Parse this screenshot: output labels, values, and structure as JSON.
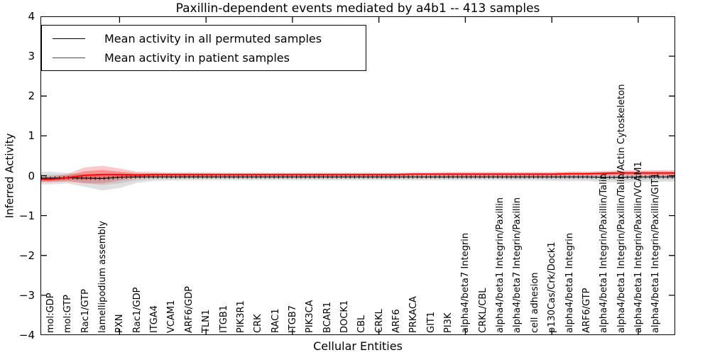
{
  "figure": {
    "title": "Paxillin-dependent events mediated by a4b1 -- 413 samples",
    "xlabel": "Cellular Entities",
    "ylabel": "Inferred Activity"
  },
  "legend": {
    "items": [
      {
        "label": "Mean activity in all permuted samples",
        "color": "#000000"
      },
      {
        "label": "Mean activity in patient samples",
        "color": "#ff0000"
      }
    ]
  },
  "chart_data": {
    "type": "line",
    "title": "Paxillin-dependent events mediated by a4b1 -- 413 samples",
    "xlabel": "Cellular Entities",
    "ylabel": "Inferred Activity",
    "ylim": [
      -4,
      4
    ],
    "yticks": [
      4,
      3,
      2,
      1,
      0,
      -1,
      -2,
      -3,
      -4
    ],
    "xtick_positions": [
      5,
      10,
      15,
      20,
      25,
      30,
      35
    ],
    "grid": false,
    "legend_position": "upper left",
    "categories": [
      "mol:GDP",
      "mol:GTP",
      "Rac1/GTP",
      "lamellipodium assembly",
      "PXN",
      "Rac1/GDP",
      "ITGA4",
      "VCAM1",
      "ARF6/GDP",
      "TLN1",
      "ITGB1",
      "PIK3R1",
      "CRK",
      "RAC1",
      "ITGB7",
      "PIK3CA",
      "BCAR1",
      "DOCK1",
      "CBL",
      "CRKL",
      "ARF6",
      "PRKACA",
      "GIT1",
      "PI3K",
      "alpha4/beta7 Integrin",
      "CRKL/CBL",
      "alpha4/beta1 Integrin/Paxillin",
      "alpha4/beta7 Integrin/Paxillin",
      "cell adhesion",
      "p130Cas/Crk/Dock1",
      "alpha4/beta1 Integrin",
      "ARF6/GTP",
      "alpha4/beta1 Integrin/Paxillin/Talin",
      "alpha4/beta1 Integrin/Paxillin/Talin/Actin Cytoskeleton",
      "alpha4/beta1 Integrin/Paxillin/VCAM1",
      "alpha4/beta1 Integrin/Paxillin/GIT1"
    ],
    "series": [
      {
        "name": "Mean activity in all permuted samples",
        "color": "#000000",
        "band_color": "#999999",
        "values": [
          -0.06,
          -0.05,
          -0.06,
          -0.07,
          -0.04,
          -0.03,
          -0.03,
          -0.03,
          -0.03,
          -0.03,
          -0.03,
          -0.03,
          -0.03,
          -0.03,
          -0.03,
          -0.03,
          -0.03,
          -0.03,
          -0.03,
          -0.03,
          -0.03,
          -0.03,
          -0.03,
          -0.03,
          -0.03,
          -0.03,
          -0.03,
          -0.03,
          -0.03,
          -0.03,
          -0.03,
          -0.03,
          -0.04,
          -0.04,
          -0.03,
          -0.03
        ],
        "band_upper": [
          0.16,
          0.12,
          0.1,
          0.09,
          0.08,
          0.08,
          0.07,
          0.07,
          0.07,
          0.07,
          0.07,
          0.07,
          0.07,
          0.07,
          0.07,
          0.07,
          0.07,
          0.07,
          0.07,
          0.07,
          0.07,
          0.07,
          0.07,
          0.07,
          0.07,
          0.07,
          0.07,
          0.07,
          0.07,
          0.08,
          0.08,
          0.08,
          0.09,
          0.1,
          0.1,
          0.11
        ],
        "band_lower": [
          0.16,
          0.14,
          0.22,
          0.3,
          0.27,
          0.15,
          0.1,
          0.09,
          0.08,
          0.08,
          0.08,
          0.08,
          0.08,
          0.08,
          0.08,
          0.08,
          0.08,
          0.08,
          0.08,
          0.08,
          0.08,
          0.08,
          0.08,
          0.08,
          0.08,
          0.08,
          0.08,
          0.09,
          0.09,
          0.1,
          0.1,
          0.1,
          0.12,
          0.13,
          0.13,
          0.12
        ]
      },
      {
        "name": "Mean activity in patient samples",
        "color": "#ff0000",
        "band_color": "#ff0000",
        "values": [
          -0.09,
          -0.05,
          0.01,
          0.03,
          0.03,
          0.02,
          0.03,
          0.03,
          0.03,
          0.03,
          0.03,
          0.03,
          0.03,
          0.03,
          0.03,
          0.03,
          0.03,
          0.03,
          0.03,
          0.03,
          0.03,
          0.04,
          0.04,
          0.04,
          0.04,
          0.04,
          0.04,
          0.04,
          0.04,
          0.04,
          0.05,
          0.05,
          0.06,
          0.07,
          0.07,
          0.07
        ],
        "band_halfwidth": [
          0.07,
          0.1,
          0.2,
          0.22,
          0.15,
          0.08,
          0.06,
          0.05,
          0.05,
          0.05,
          0.045,
          0.045,
          0.045,
          0.045,
          0.045,
          0.045,
          0.045,
          0.045,
          0.045,
          0.045,
          0.045,
          0.045,
          0.045,
          0.05,
          0.05,
          0.05,
          0.05,
          0.05,
          0.05,
          0.05,
          0.055,
          0.055,
          0.06,
          0.065,
          0.065,
          0.07
        ]
      }
    ]
  }
}
